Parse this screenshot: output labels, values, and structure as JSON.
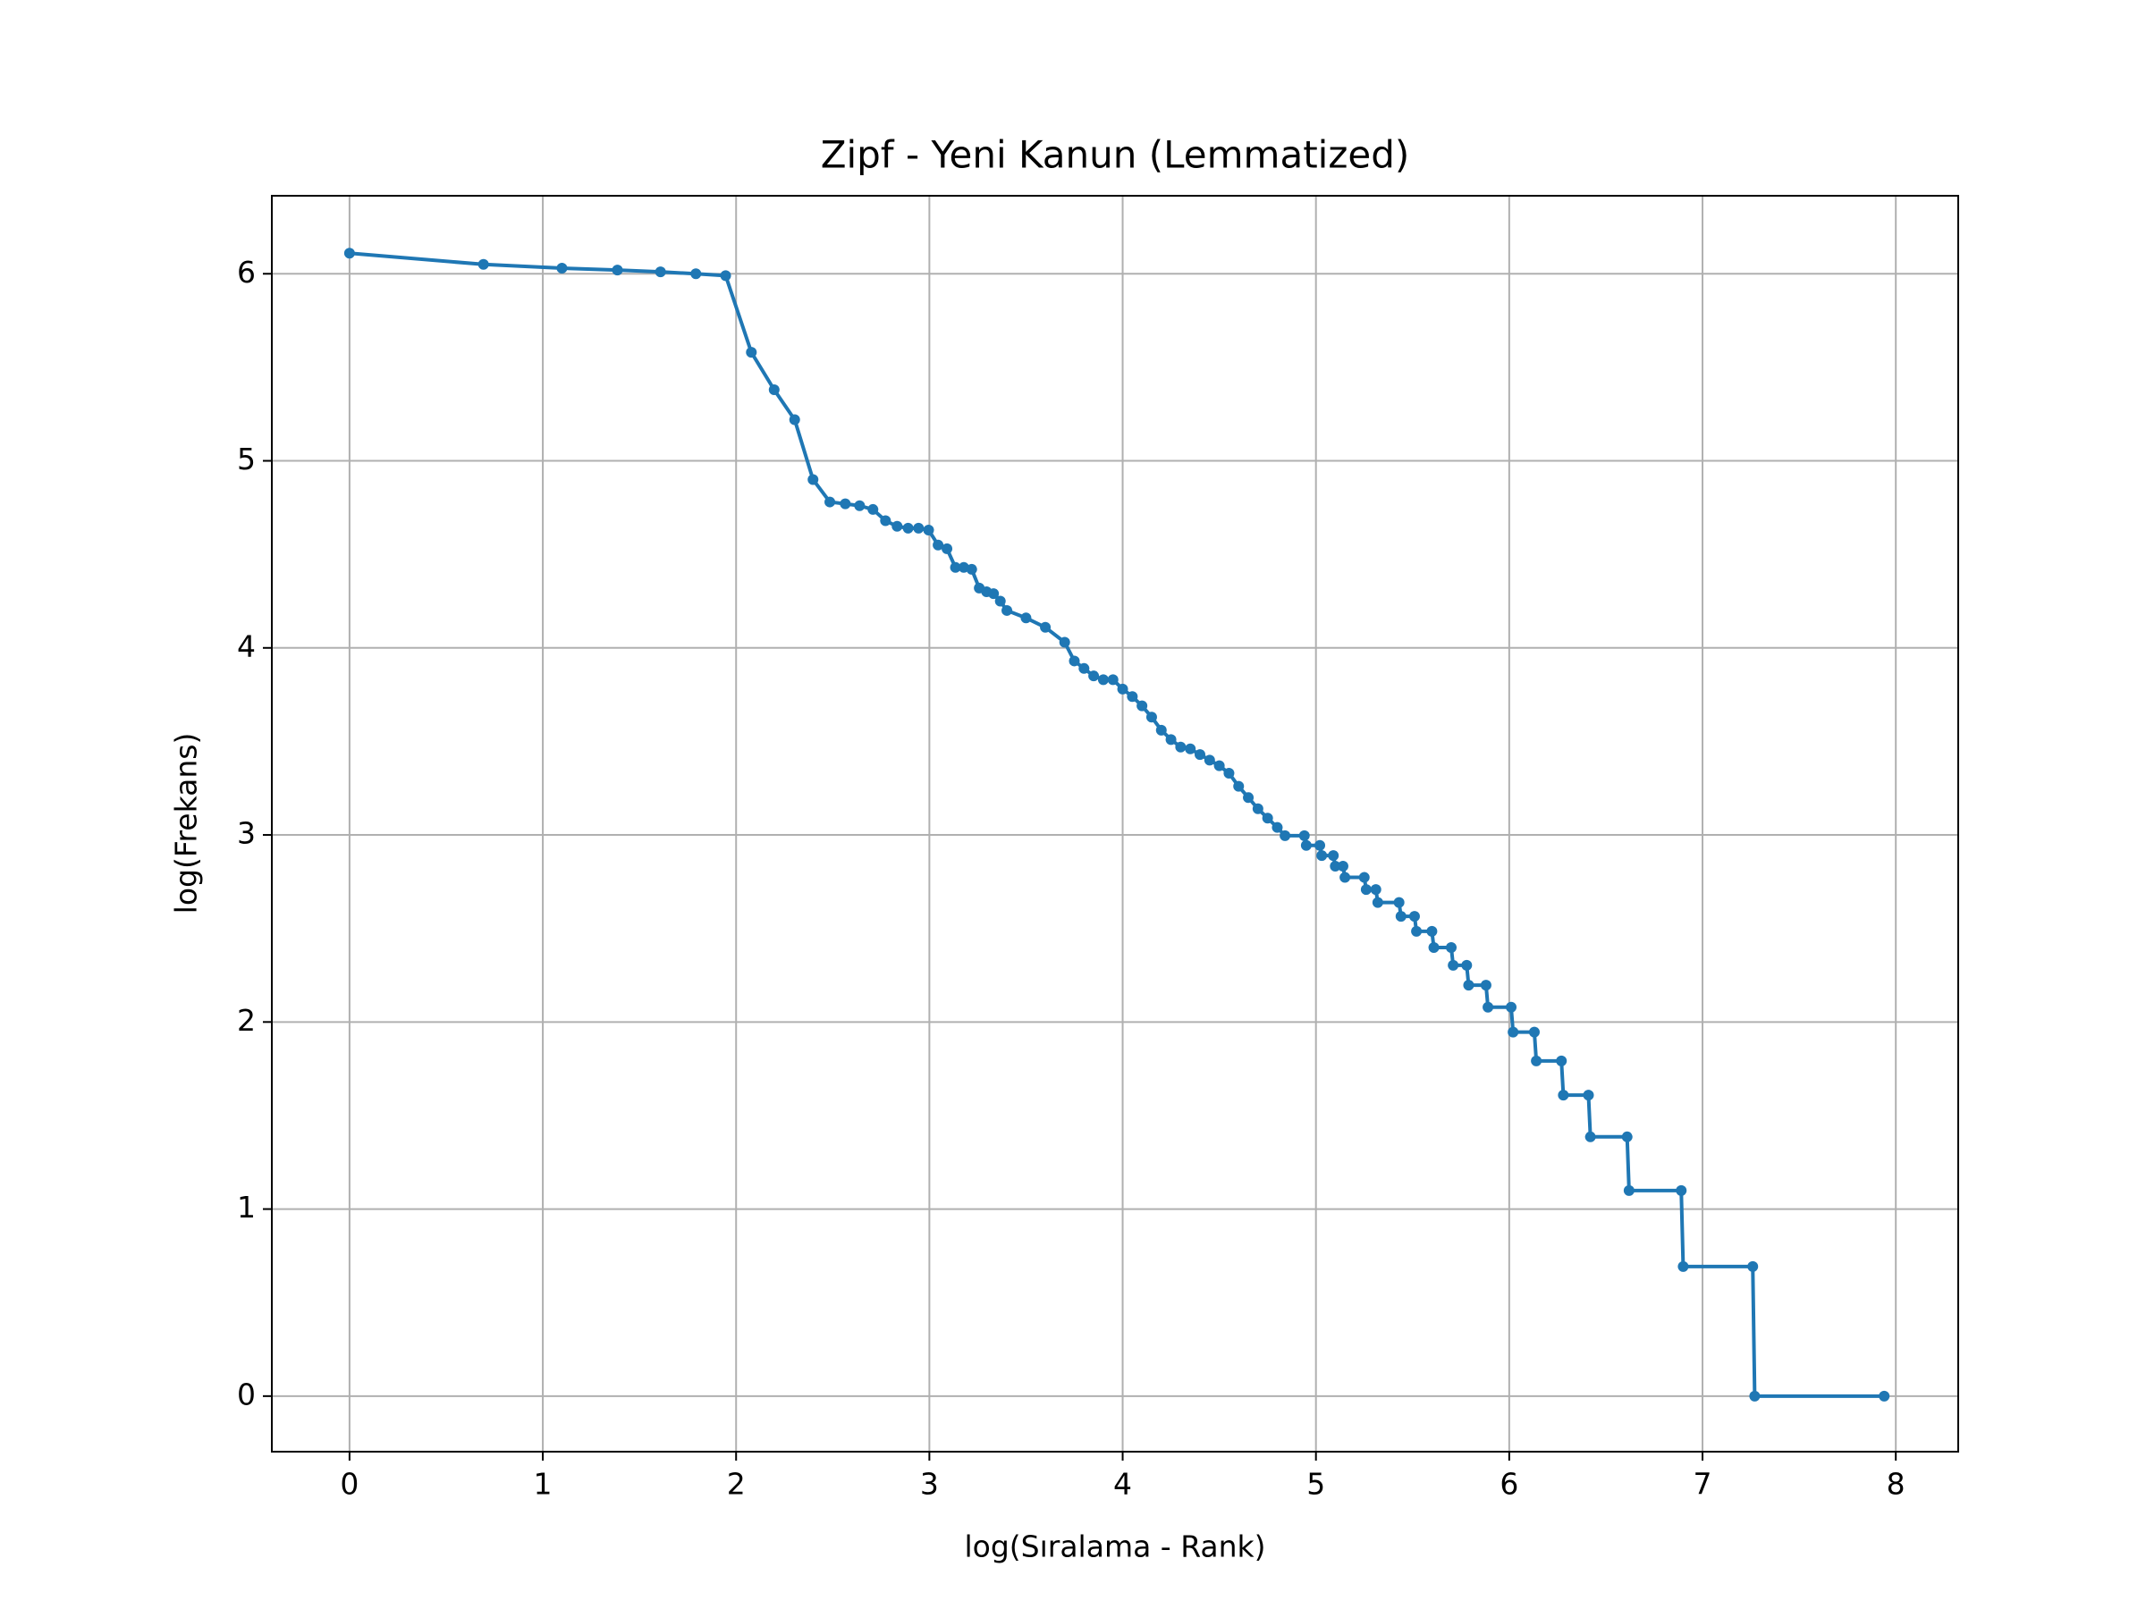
{
  "chart_data": {
    "type": "line",
    "title": "Zipf - Yeni Kanun (Lemmatized)",
    "x_label": "log(Sıralama - Rank)",
    "y_label": "log(Frekans)",
    "x": [
      0,
      0.693,
      1.099,
      1.386,
      1.609,
      1.792,
      1.946,
      2.079,
      2.197,
      2.303,
      2.398,
      2.485,
      2.565,
      2.639,
      2.708,
      2.773,
      2.833,
      2.89,
      2.944,
      2.996,
      3.045,
      3.091,
      3.135,
      3.178,
      3.219,
      3.258,
      3.296,
      3.332,
      3.367,
      3.401,
      3.5,
      3.6,
      3.7,
      3.75,
      3.8,
      3.85,
      3.9,
      3.95,
      4.0,
      4.05,
      4.1,
      4.15,
      4.2,
      4.25,
      4.3,
      4.35,
      4.4,
      4.45,
      4.5,
      4.55,
      4.6,
      4.65,
      4.7,
      4.75,
      4.8,
      4.84,
      4.94,
      4.95,
      5.02,
      5.03,
      5.09,
      5.1,
      5.14,
      5.15,
      5.25,
      5.26,
      5.31,
      5.32,
      5.43,
      5.44,
      5.51,
      5.52,
      5.6,
      5.61,
      5.7,
      5.71,
      5.78,
      5.79,
      5.88,
      5.89,
      6.01,
      6.02,
      6.13,
      6.14,
      6.27,
      6.28,
      6.41,
      6.42,
      6.61,
      6.62,
      6.89,
      6.9,
      7.26,
      7.27,
      7.94
    ],
    "series": [
      {
        "color": "#1f77b4",
        "values": [
          6.11,
          6.05,
          6.03,
          6.02,
          6.01,
          6.0,
          5.99,
          5.58,
          5.38,
          5.22,
          4.9,
          4.78,
          4.77,
          4.76,
          4.74,
          4.68,
          4.65,
          4.64,
          4.64,
          4.63,
          4.55,
          4.53,
          4.43,
          4.43,
          4.42,
          4.32,
          4.3,
          4.29,
          4.25,
          4.2,
          4.16,
          4.11,
          4.03,
          3.93,
          3.89,
          3.85,
          3.83,
          3.83,
          3.78,
          3.74,
          3.69,
          3.63,
          3.56,
          3.51,
          3.47,
          3.46,
          3.43,
          3.4,
          3.37,
          3.33,
          3.26,
          3.2,
          3.14,
          3.09,
          3.04,
          2.996,
          2.996,
          2.944,
          2.944,
          2.89,
          2.89,
          2.833,
          2.833,
          2.773,
          2.773,
          2.708,
          2.708,
          2.639,
          2.639,
          2.565,
          2.565,
          2.485,
          2.485,
          2.398,
          2.398,
          2.303,
          2.303,
          2.197,
          2.197,
          2.079,
          2.079,
          1.946,
          1.946,
          1.792,
          1.792,
          1.609,
          1.609,
          1.386,
          1.386,
          1.099,
          1.099,
          0.693,
          0.693,
          0,
          0
        ]
      }
    ],
    "xlim": [
      -0.402,
      8.323
    ],
    "ylim": [
      -0.297,
      6.417
    ],
    "xticks": [
      0,
      1,
      2,
      3,
      4,
      5,
      6,
      7,
      8
    ],
    "yticks": [
      0,
      1,
      2,
      3,
      4,
      5,
      6
    ],
    "grid": true
  }
}
